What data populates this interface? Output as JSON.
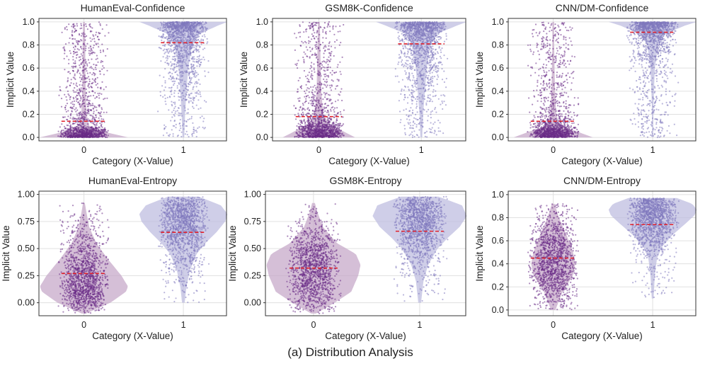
{
  "caption": "(a) Distribution Analysis",
  "colors": {
    "class0_dots": "#6a2c86",
    "class0_violin": "#c7a9c9",
    "class1_dots": "#7f78bd",
    "class1_violin": "#bfbde0",
    "mean_line": "#e0202a",
    "grid": "#e0e0e0",
    "frame": "#333333"
  },
  "chart_data": [
    {
      "type": "violin",
      "title": "HumanEval-Confidence",
      "xlabel": "Category (X-Value)",
      "ylabel": "Implicit Value",
      "categories": [
        "0",
        "1"
      ],
      "ylim": [
        -0.03,
        1.03
      ],
      "yticks": [
        0.0,
        0.2,
        0.4,
        0.6,
        0.8,
        1.0
      ],
      "ytick_labels": [
        "0.0",
        "0.2",
        "0.4",
        "0.6",
        "0.8",
        "1.0"
      ],
      "means": [
        0.14,
        0.82
      ],
      "grid": true,
      "series": [
        {
          "category": "0",
          "range": [
            0.0,
            1.0
          ],
          "profile": [
            [
              0.0,
              1.0
            ],
            [
              0.05,
              0.45
            ],
            [
              0.1,
              0.12
            ],
            [
              0.2,
              0.06
            ],
            [
              0.4,
              0.04
            ],
            [
              0.6,
              0.03
            ],
            [
              0.8,
              0.03
            ],
            [
              1.0,
              0.02
            ]
          ]
        },
        {
          "category": "1",
          "range": [
            0.0,
            1.0
          ],
          "profile": [
            [
              0.0,
              0.02
            ],
            [
              0.2,
              0.04
            ],
            [
              0.4,
              0.07
            ],
            [
              0.6,
              0.11
            ],
            [
              0.8,
              0.2
            ],
            [
              0.9,
              0.38
            ],
            [
              0.97,
              0.8
            ],
            [
              1.0,
              1.0
            ]
          ]
        }
      ]
    },
    {
      "type": "violin",
      "title": "GSM8K-Confidence",
      "xlabel": "Category (X-Value)",
      "ylabel": "Implicit Value",
      "categories": [
        "0",
        "1"
      ],
      "ylim": [
        -0.03,
        1.03
      ],
      "yticks": [
        0.0,
        0.2,
        0.4,
        0.6,
        0.8,
        1.0
      ],
      "ytick_labels": [
        "0.0",
        "0.2",
        "0.4",
        "0.6",
        "0.8",
        "1.0"
      ],
      "means": [
        0.18,
        0.81
      ],
      "grid": true,
      "series": [
        {
          "category": "0",
          "range": [
            0.0,
            1.0
          ],
          "profile": [
            [
              0.0,
              0.8
            ],
            [
              0.05,
              0.55
            ],
            [
              0.12,
              0.22
            ],
            [
              0.2,
              0.1
            ],
            [
              0.4,
              0.05
            ],
            [
              0.6,
              0.04
            ],
            [
              0.8,
              0.03
            ],
            [
              1.0,
              0.02
            ]
          ]
        },
        {
          "category": "1",
          "range": [
            0.0,
            1.0
          ],
          "profile": [
            [
              0.0,
              0.02
            ],
            [
              0.2,
              0.04
            ],
            [
              0.4,
              0.08
            ],
            [
              0.6,
              0.12
            ],
            [
              0.8,
              0.2
            ],
            [
              0.9,
              0.36
            ],
            [
              0.97,
              0.8
            ],
            [
              1.0,
              1.0
            ]
          ]
        }
      ]
    },
    {
      "type": "violin",
      "title": "CNN/DM-Confidence",
      "xlabel": "Category (X-Value)",
      "ylabel": "Implicit Value",
      "categories": [
        "0",
        "1"
      ],
      "ylim": [
        -0.03,
        1.03
      ],
      "yticks": [
        0.0,
        0.2,
        0.4,
        0.6,
        0.8,
        1.0
      ],
      "ytick_labels": [
        "0.0",
        "0.2",
        "0.4",
        "0.6",
        "0.8",
        "1.0"
      ],
      "means": [
        0.14,
        0.91
      ],
      "grid": true,
      "series": [
        {
          "category": "0",
          "range": [
            0.0,
            1.0
          ],
          "profile": [
            [
              0.0,
              0.9
            ],
            [
              0.05,
              0.55
            ],
            [
              0.1,
              0.15
            ],
            [
              0.2,
              0.07
            ],
            [
              0.4,
              0.04
            ],
            [
              0.6,
              0.03
            ],
            [
              0.8,
              0.02
            ],
            [
              1.0,
              0.02
            ]
          ]
        },
        {
          "category": "1",
          "range": [
            0.0,
            1.0
          ],
          "profile": [
            [
              0.0,
              0.01
            ],
            [
              0.3,
              0.02
            ],
            [
              0.6,
              0.05
            ],
            [
              0.8,
              0.12
            ],
            [
              0.9,
              0.3
            ],
            [
              0.97,
              0.75
            ],
            [
              1.0,
              1.0
            ]
          ]
        }
      ]
    },
    {
      "type": "violin",
      "title": "HumanEval-Entropy",
      "xlabel": "Category (X-Value)",
      "ylabel": "Implicit Value",
      "categories": [
        "0",
        "1"
      ],
      "ylim": [
        -0.12,
        1.03
      ],
      "yticks": [
        0.0,
        0.25,
        0.5,
        0.75,
        1.0
      ],
      "ytick_labels": [
        "0.00",
        "0.25",
        "0.50",
        "0.75",
        "1.00"
      ],
      "means": [
        0.27,
        0.65
      ],
      "grid": true,
      "series": [
        {
          "category": "0",
          "range": [
            -0.1,
            0.92
          ],
          "profile": [
            [
              -0.1,
              0.05
            ],
            [
              0.0,
              0.6
            ],
            [
              0.1,
              0.95
            ],
            [
              0.15,
              1.0
            ],
            [
              0.25,
              0.85
            ],
            [
              0.4,
              0.55
            ],
            [
              0.55,
              0.28
            ],
            [
              0.7,
              0.12
            ],
            [
              0.85,
              0.05
            ],
            [
              0.92,
              0.02
            ]
          ]
        },
        {
          "category": "1",
          "range": [
            0.0,
            0.98
          ],
          "profile": [
            [
              0.0,
              0.03
            ],
            [
              0.15,
              0.07
            ],
            [
              0.3,
              0.15
            ],
            [
              0.45,
              0.3
            ],
            [
              0.55,
              0.5
            ],
            [
              0.65,
              0.75
            ],
            [
              0.75,
              0.95
            ],
            [
              0.82,
              1.0
            ],
            [
              0.9,
              0.85
            ],
            [
              0.98,
              0.35
            ]
          ]
        }
      ]
    },
    {
      "type": "violin",
      "title": "GSM8K-Entropy",
      "xlabel": "Category (X-Value)",
      "ylabel": "Implicit Value",
      "categories": [
        "0",
        "1"
      ],
      "ylim": [
        -0.12,
        1.03
      ],
      "yticks": [
        0.0,
        0.25,
        0.5,
        0.75,
        1.0
      ],
      "ytick_labels": [
        "0.00",
        "0.25",
        "0.50",
        "0.75",
        "1.00"
      ],
      "means": [
        0.32,
        0.66
      ],
      "grid": true,
      "series": [
        {
          "category": "0",
          "range": [
            -0.1,
            0.92
          ],
          "profile": [
            [
              -0.1,
              0.05
            ],
            [
              0.0,
              0.45
            ],
            [
              0.1,
              0.8
            ],
            [
              0.25,
              0.95
            ],
            [
              0.35,
              1.0
            ],
            [
              0.45,
              0.9
            ],
            [
              0.55,
              0.5
            ],
            [
              0.7,
              0.2
            ],
            [
              0.85,
              0.07
            ],
            [
              0.92,
              0.03
            ]
          ]
        },
        {
          "category": "1",
          "range": [
            0.0,
            0.98
          ],
          "profile": [
            [
              0.0,
              0.03
            ],
            [
              0.2,
              0.08
            ],
            [
              0.35,
              0.18
            ],
            [
              0.5,
              0.38
            ],
            [
              0.6,
              0.6
            ],
            [
              0.7,
              0.85
            ],
            [
              0.8,
              1.0
            ],
            [
              0.9,
              0.9
            ],
            [
              0.98,
              0.4
            ]
          ]
        }
      ]
    },
    {
      "type": "violin",
      "title": "CNN/DM-Entropy",
      "xlabel": "Category (X-Value)",
      "ylabel": "Implicit Value",
      "categories": [
        "0",
        "1"
      ],
      "ylim": [
        -0.05,
        1.03
      ],
      "yticks": [
        0.0,
        0.2,
        0.4,
        0.6,
        0.8,
        1.0
      ],
      "ytick_labels": [
        "0.0",
        "0.2",
        "0.4",
        "0.6",
        "0.8",
        "1.0"
      ],
      "means": [
        0.45,
        0.74
      ],
      "grid": true,
      "series": [
        {
          "category": "0",
          "range": [
            0.0,
            0.92
          ],
          "profile": [
            [
              0.0,
              0.05
            ],
            [
              0.15,
              0.2
            ],
            [
              0.3,
              0.45
            ],
            [
              0.4,
              0.5
            ],
            [
              0.5,
              0.45
            ],
            [
              0.65,
              0.3
            ],
            [
              0.8,
              0.13
            ],
            [
              0.92,
              0.03
            ]
          ]
        },
        {
          "category": "1",
          "range": [
            0.1,
            0.97
          ],
          "profile": [
            [
              0.1,
              0.02
            ],
            [
              0.3,
              0.05
            ],
            [
              0.45,
              0.1
            ],
            [
              0.55,
              0.22
            ],
            [
              0.65,
              0.45
            ],
            [
              0.75,
              0.75
            ],
            [
              0.82,
              0.95
            ],
            [
              0.87,
              1.0
            ],
            [
              0.92,
              0.9
            ],
            [
              0.97,
              0.55
            ]
          ]
        }
      ]
    }
  ]
}
